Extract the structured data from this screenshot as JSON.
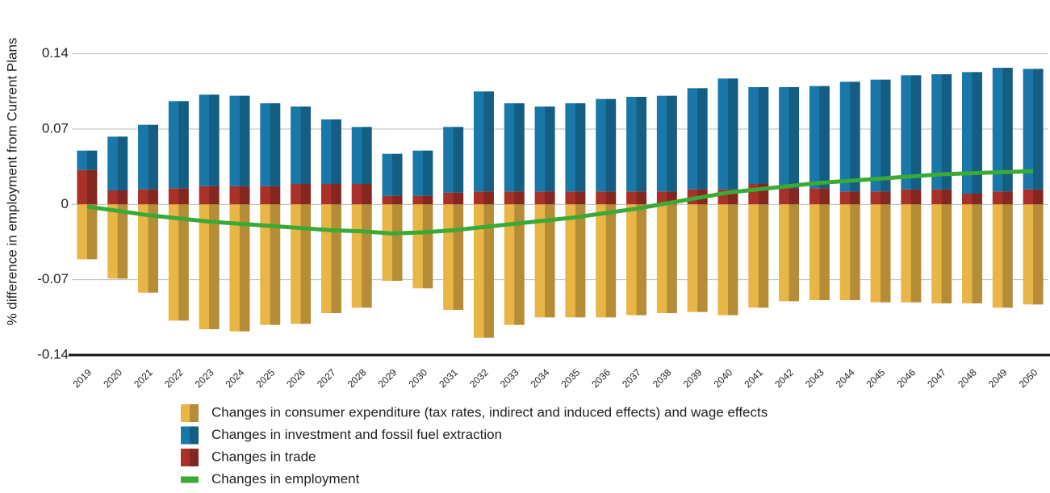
{
  "chart_data": {
    "type": "bar",
    "y_label": "% difference in employment from Current Plans",
    "categories": [
      "2019",
      "2020",
      "2021",
      "2022",
      "2023",
      "2024",
      "2025",
      "2026",
      "2027",
      "2028",
      "2029",
      "2030",
      "2031",
      "2032",
      "2033",
      "2034",
      "2035",
      "2036",
      "2037",
      "2038",
      "2039",
      "2040",
      "2041",
      "2042",
      "2043",
      "2044",
      "2045",
      "2046",
      "2047",
      "2048",
      "2049",
      "2050"
    ],
    "ylim": [
      -0.14,
      0.19
    ],
    "yticks": [
      -0.14,
      -0.07,
      0,
      0.07,
      0.14
    ],
    "grid": true,
    "stacked": true,
    "series": [
      {
        "name": "Changes in consumer expenditure (tax rates, indirect and induced effects) and wage effects",
        "color": "#e8b547",
        "values": [
          -0.051,
          -0.069,
          -0.082,
          -0.108,
          -0.116,
          -0.118,
          -0.112,
          -0.111,
          -0.101,
          -0.096,
          -0.071,
          -0.078,
          -0.098,
          -0.124,
          -0.112,
          -0.105,
          -0.105,
          -0.105,
          -0.103,
          -0.101,
          -0.1,
          -0.103,
          -0.096,
          -0.09,
          -0.089,
          -0.089,
          -0.091,
          -0.091,
          -0.092,
          -0.092,
          -0.096,
          -0.093
        ]
      },
      {
        "name": "Changes in investment and fossil fuel extraction",
        "color": "#1a78a8",
        "values": [
          0.018,
          0.05,
          0.06,
          0.081,
          0.085,
          0.084,
          0.077,
          0.072,
          0.06,
          0.053,
          0.039,
          0.042,
          0.061,
          0.093,
          0.082,
          0.079,
          0.082,
          0.086,
          0.088,
          0.089,
          0.094,
          0.103,
          0.09,
          0.094,
          0.095,
          0.102,
          0.104,
          0.106,
          0.107,
          0.113,
          0.115,
          0.112
        ]
      },
      {
        "name": "Changes in trade",
        "color": "#a8322a",
        "values": [
          0.032,
          0.013,
          0.014,
          0.015,
          0.017,
          0.017,
          0.017,
          0.019,
          0.019,
          0.019,
          0.008,
          0.008,
          0.011,
          0.012,
          0.012,
          0.012,
          0.012,
          0.012,
          0.012,
          0.012,
          0.014,
          0.014,
          0.019,
          0.015,
          0.015,
          0.012,
          0.012,
          0.014,
          0.014,
          0.01,
          0.012,
          0.014
        ]
      },
      {
        "name": "Changes in employment",
        "color": "#3aaa35",
        "type": "line",
        "values": [
          -0.002,
          -0.006,
          -0.01,
          -0.013,
          -0.016,
          -0.018,
          -0.02,
          -0.022,
          -0.024,
          -0.025,
          -0.027,
          -0.026,
          -0.024,
          -0.021,
          -0.018,
          -0.015,
          -0.012,
          -0.008,
          -0.004,
          0.001,
          0.006,
          0.011,
          0.014,
          0.017,
          0.02,
          0.022,
          0.024,
          0.026,
          0.028,
          0.029,
          0.03,
          0.031
        ]
      }
    ]
  }
}
